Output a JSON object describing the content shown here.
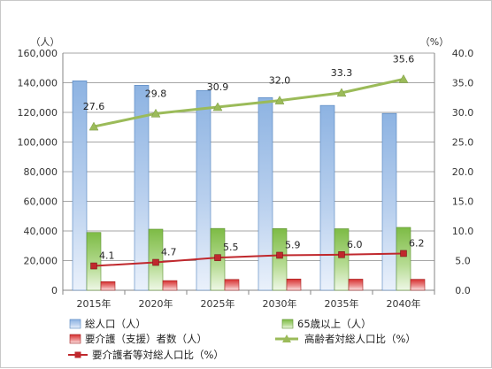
{
  "chart_data": {
    "type": "bar",
    "categories": [
      "2015年",
      "2020年",
      "2025年",
      "2030年",
      "2035年",
      "2040年"
    ],
    "series": [
      {
        "name": "総人口（人）",
        "kind": "bar",
        "axis": "left",
        "color": "#8db3e2",
        "values": [
          141300,
          138300,
          134800,
          130000,
          124700,
          119300
        ]
      },
      {
        "name": "65歳以上（人）",
        "kind": "bar",
        "axis": "left",
        "color": "#8ec85a",
        "values": [
          39000,
          41200,
          41700,
          41600,
          41500,
          42400
        ]
      },
      {
        "name": "要介護（支援）者数（人）",
        "kind": "bar",
        "axis": "left",
        "color": "#e04848",
        "values": [
          5800,
          6500,
          7300,
          7600,
          7500,
          7400
        ]
      },
      {
        "name": "高齢者対総人口比（%）",
        "kind": "line",
        "axis": "right",
        "color": "#9bbb59",
        "marker": "triangle",
        "values": [
          27.6,
          29.8,
          30.9,
          32.0,
          33.3,
          35.6
        ],
        "labels": [
          "27.6",
          "29.8",
          "30.9",
          "32.0",
          "33.3",
          "35.6"
        ]
      },
      {
        "name": "要介護者等対総人口比（%）",
        "kind": "line",
        "axis": "right",
        "color": "#c0282d",
        "marker": "square",
        "values": [
          4.1,
          4.7,
          5.5,
          5.9,
          6.0,
          6.2
        ],
        "labels": [
          "4.1",
          "4.7",
          "5.5",
          "5.9",
          "6.0",
          "6.2"
        ]
      }
    ],
    "y_left": {
      "unit": "（人）",
      "min": 0,
      "max": 160000,
      "step": 20000,
      "ticks": [
        "0",
        "20,000",
        "40,000",
        "60,000",
        "80,000",
        "100,000",
        "120,000",
        "140,000",
        "160,000"
      ]
    },
    "y_right": {
      "unit": "（%）",
      "min": 0,
      "max": 40,
      "step": 5,
      "ticks": [
        "0.0",
        "5.0",
        "10.0",
        "15.0",
        "20.0",
        "25.0",
        "30.0",
        "35.0",
        "40.0"
      ]
    },
    "grid": true,
    "legend_position": "bottom"
  }
}
